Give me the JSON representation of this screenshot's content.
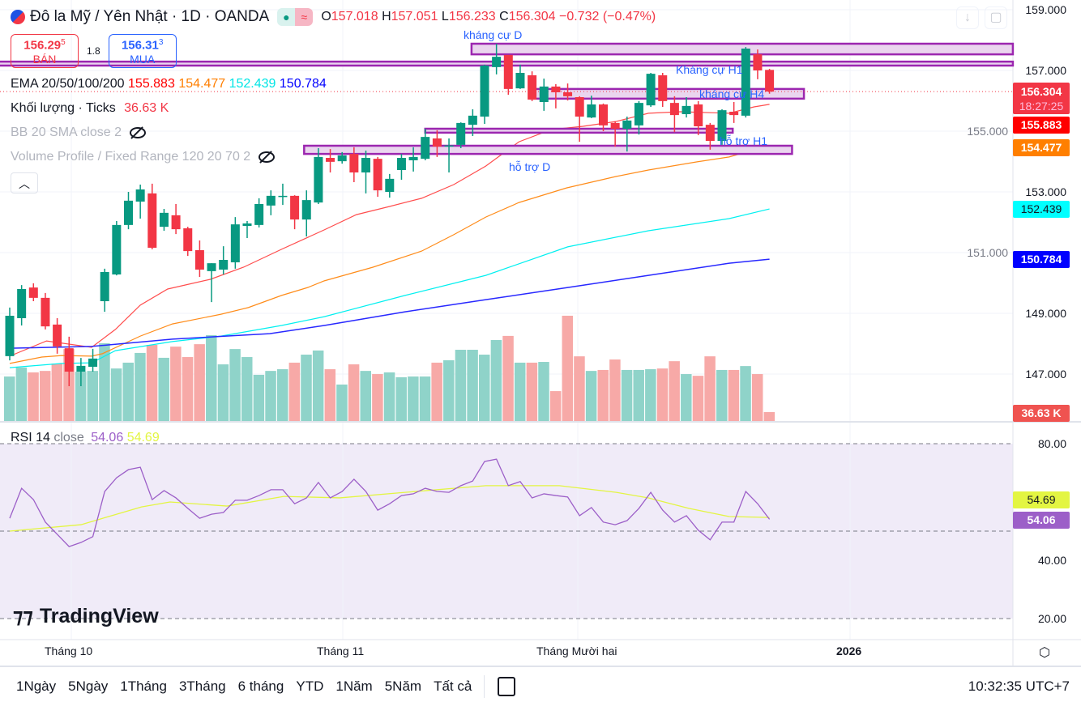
{
  "header": {
    "symbol_title": "Đô la Mỹ / Yên Nhật · 1D · OANDA",
    "market_icons": [
      "dot-icon",
      "approx-icon"
    ],
    "ohlc": {
      "o_label": "O",
      "o": "157.018",
      "h_label": "H",
      "h": "157.051",
      "l_label": "L",
      "l": "156.233",
      "c_label": "C",
      "c": "156.304",
      "change": "−0.732 (−0.47%)"
    },
    "sell": {
      "price": "156.29",
      "sup": "5",
      "label": "BÁN"
    },
    "spread": "1.8",
    "buy": {
      "price": "156.31",
      "sup": "3",
      "label": "MUA"
    }
  },
  "indicators": {
    "ema": {
      "label": "EMA 20/50/100/200",
      "values": [
        "155.883",
        "154.477",
        "152.439",
        "150.784"
      ]
    },
    "volume": {
      "label": "Khối lượng · Ticks",
      "value": "36.63 K"
    },
    "bb": {
      "label": "BB 20 SMA close 2"
    },
    "vp": {
      "label": "Volume Profile / Fixed Range 120 20 70 2"
    }
  },
  "colors": {
    "up": "#089981",
    "down": "#f23645",
    "ema20": "#ff4d4d",
    "ema50": "#ff8c1a",
    "ema100": "#00f0f0",
    "ema200": "#2828ff",
    "zone_fill": "#ead5ee",
    "zone_border": "#9c27b0",
    "rsi": "#9c5fc8",
    "rsi_ma": "#e3f542"
  },
  "price_axis": {
    "labels": [
      "159.000",
      "157.000",
      "155.000",
      "153.000",
      "151.000",
      "149.000",
      "147.000"
    ],
    "tags": [
      {
        "value": "156.304",
        "sub": "18:27:25",
        "color": "#f23645"
      },
      {
        "value": "155.883",
        "color": "#ff0000"
      },
      {
        "value": "154.477",
        "color": "#ff7f00"
      },
      {
        "value": "152.439",
        "color": "#00ffff"
      },
      {
        "value": "150.784",
        "color": "#0000ff"
      },
      {
        "value": "36.63 K",
        "color": "#ef5350"
      }
    ]
  },
  "rsi": {
    "label": "RSI 14",
    "source": "close",
    "value": "54.06",
    "ma_value": "54.69",
    "axis_labels": [
      "80.00",
      "40.00",
      "20.00"
    ]
  },
  "time_axis": {
    "labels": [
      "Tháng 10",
      "Tháng 11",
      "Tháng Mười hai",
      "2026"
    ]
  },
  "bottom_bar": {
    "ranges": [
      "1Ngày",
      "5Ngày",
      "1Tháng",
      "3Tháng",
      "6 tháng",
      "YTD",
      "1Năm",
      "5Năm",
      "Tất cả"
    ],
    "time": "10:32:35 UTC+7"
  },
  "watermark": "TradingView",
  "chart_data": {
    "type": "candlestick",
    "title": "Đô la Mỹ / Yên Nhật · 1D · OANDA",
    "ylim": [
      146.3,
      159.3
    ],
    "candles_ohlc": [
      [
        147.59,
        149.19,
        147.45,
        148.92
      ],
      [
        148.84,
        149.93,
        148.6,
        149.8
      ],
      [
        149.85,
        149.99,
        149.4,
        149.51
      ],
      [
        149.51,
        149.67,
        148.47,
        148.57
      ],
      [
        148.63,
        148.84,
        147.67,
        147.91
      ],
      [
        147.85,
        148.23,
        146.6,
        147.08
      ],
      [
        147.08,
        147.53,
        146.6,
        147.27
      ],
      [
        147.24,
        147.83,
        147.08,
        147.51
      ],
      [
        149.4,
        150.47,
        149.05,
        150.36
      ],
      [
        150.28,
        152.04,
        150.25,
        151.91
      ],
      [
        151.91,
        153.0,
        151.77,
        152.71
      ],
      [
        152.68,
        153.24,
        152.12,
        153.08
      ],
      [
        152.95,
        153.27,
        151.11,
        151.16
      ],
      [
        151.85,
        152.44,
        151.72,
        152.31
      ],
      [
        152.23,
        152.6,
        151.61,
        151.77
      ],
      [
        151.8,
        151.85,
        150.89,
        151.05
      ],
      [
        151.08,
        151.4,
        150.2,
        150.44
      ],
      [
        150.39,
        150.65,
        149.37,
        150.65
      ],
      [
        150.44,
        151.21,
        150.28,
        150.76
      ],
      [
        150.68,
        152.17,
        150.47,
        151.93
      ],
      [
        151.88,
        152.04,
        151.48,
        151.96
      ],
      [
        151.91,
        152.79,
        151.83,
        152.6
      ],
      [
        152.55,
        153.05,
        152.23,
        152.87
      ],
      [
        152.84,
        153.27,
        152.57,
        152.87
      ],
      [
        152.87,
        152.89,
        151.77,
        152.09
      ],
      [
        152.09,
        153.05,
        151.53,
        152.73
      ],
      [
        152.65,
        154.44,
        152.6,
        154.15
      ],
      [
        154.12,
        154.41,
        153.64,
        153.99
      ],
      [
        154.01,
        154.31,
        153.93,
        154.2
      ],
      [
        154.25,
        154.47,
        153.32,
        153.64
      ],
      [
        153.64,
        154.36,
        152.95,
        154.12
      ],
      [
        154.09,
        154.15,
        152.84,
        153.05
      ],
      [
        153.0,
        153.59,
        152.81,
        153.43
      ],
      [
        153.72,
        154.25,
        153.4,
        154.12
      ],
      [
        154.04,
        154.47,
        153.67,
        154.15
      ],
      [
        154.09,
        155.08,
        154.04,
        154.81
      ],
      [
        154.76,
        155.03,
        154.15,
        154.49
      ],
      [
        154.52,
        154.76,
        153.64,
        154.53
      ],
      [
        154.55,
        155.29,
        154.44,
        155.27
      ],
      [
        155.21,
        155.72,
        154.84,
        155.51
      ],
      [
        155.48,
        157.19,
        155.24,
        157.16
      ],
      [
        157.11,
        157.88,
        156.87,
        157.45
      ],
      [
        157.51,
        157.51,
        156.2,
        156.39
      ],
      [
        156.41,
        157.19,
        156.39,
        156.92
      ],
      [
        156.84,
        156.97,
        155.99,
        156.04
      ],
      [
        155.96,
        156.73,
        155.67,
        156.47
      ],
      [
        156.47,
        156.55,
        155.75,
        156.28
      ],
      [
        156.28,
        156.57,
        156.01,
        156.15
      ],
      [
        156.12,
        156.15,
        154.65,
        155.48
      ],
      [
        155.45,
        156.17,
        155.43,
        155.88
      ],
      [
        155.88,
        155.91,
        155.0,
        155.19
      ],
      [
        155.27,
        155.32,
        154.49,
        155.08
      ],
      [
        155.08,
        155.48,
        154.33,
        155.35
      ],
      [
        155.19,
        155.99,
        154.89,
        155.93
      ],
      [
        155.85,
        156.92,
        155.8,
        156.89
      ],
      [
        156.84,
        156.92,
        155.8,
        155.99
      ],
      [
        155.93,
        156.15,
        154.97,
        155.53
      ],
      [
        155.56,
        156.12,
        155.45,
        155.83
      ],
      [
        155.88,
        155.99,
        154.87,
        155.16
      ],
      [
        155.21,
        155.27,
        154.39,
        154.68
      ],
      [
        154.68,
        155.72,
        154.55,
        155.69
      ],
      [
        155.64,
        155.96,
        155.27,
        155.53
      ],
      [
        155.51,
        157.77,
        155.45,
        157.72
      ],
      [
        157.53,
        157.69,
        156.71,
        157.0
      ],
      [
        157.018,
        157.051,
        156.233,
        156.304
      ]
    ],
    "volume_k": [
      183,
      220,
      200,
      206,
      236,
      296,
      203,
      206,
      320,
      216,
      240,
      280,
      313,
      260,
      306,
      263,
      316,
      353,
      233,
      296,
      263,
      190,
      206,
      213,
      240,
      273,
      290,
      213,
      150,
      233,
      206,
      193,
      200,
      180,
      183,
      183,
      240,
      250,
      293,
      293,
      273,
      333,
      350,
      240,
      240,
      243,
      123,
      433,
      266,
      206,
      210,
      253,
      210,
      210,
      213,
      216,
      246,
      193,
      186,
      266,
      210,
      210,
      226,
      193,
      36.63
    ],
    "ema": [
      {
        "name": "EMA 20",
        "last": 155.883,
        "points": [
          [
            0,
            147.59
          ],
          [
            3.1,
            148.09
          ],
          [
            6.9,
            147.88
          ],
          [
            8.9,
            148.47
          ],
          [
            11,
            149.27
          ],
          [
            13.3,
            149.8
          ],
          [
            16.9,
            150.12
          ],
          [
            19.7,
            150.52
          ],
          [
            22.9,
            151.11
          ],
          [
            26.5,
            151.75
          ],
          [
            29.2,
            152.25
          ],
          [
            32,
            152.52
          ],
          [
            34.7,
            152.79
          ],
          [
            37.4,
            153.24
          ],
          [
            40.1,
            153.85
          ],
          [
            42.9,
            154.65
          ],
          [
            45.6,
            155.05
          ],
          [
            48.3,
            155.16
          ],
          [
            51.1,
            155.32
          ],
          [
            53.8,
            155.59
          ],
          [
            56.5,
            155.64
          ],
          [
            60.6,
            155.59
          ],
          [
            62.7,
            155.8
          ],
          [
            64,
            155.883
          ]
        ]
      },
      {
        "name": "EMA 50",
        "last": 154.477,
        "points": [
          [
            0,
            147.35
          ],
          [
            2.7,
            147.56
          ],
          [
            4.4,
            147.61
          ],
          [
            6.9,
            147.59
          ],
          [
            7.8,
            147.67
          ],
          [
            11,
            148.25
          ],
          [
            13.7,
            148.65
          ],
          [
            17.8,
            148.97
          ],
          [
            20.1,
            149.19
          ],
          [
            22.9,
            149.59
          ],
          [
            25.1,
            149.85
          ],
          [
            26.5,
            150.07
          ],
          [
            30.6,
            150.52
          ],
          [
            34.7,
            151.05
          ],
          [
            37.4,
            151.59
          ],
          [
            40.1,
            152.17
          ],
          [
            42.9,
            152.65
          ],
          [
            46.9,
            153.13
          ],
          [
            51.1,
            153.51
          ],
          [
            53.8,
            153.72
          ],
          [
            57.9,
            153.99
          ],
          [
            60.6,
            154.15
          ],
          [
            62.7,
            154.39
          ],
          [
            64,
            154.477
          ]
        ]
      },
      {
        "name": "EMA 100",
        "last": 152.439,
        "points": [
          [
            0,
            147.21
          ],
          [
            4.4,
            147.35
          ],
          [
            6.9,
            147.37
          ],
          [
            8.9,
            147.77
          ],
          [
            13.7,
            148.07
          ],
          [
            17.8,
            148.25
          ],
          [
            22.9,
            148.6
          ],
          [
            26.5,
            148.89
          ],
          [
            33.3,
            149.59
          ],
          [
            40.1,
            150.25
          ],
          [
            47,
            151.19
          ],
          [
            53.8,
            151.72
          ],
          [
            60.6,
            152.12
          ],
          [
            64,
            152.439
          ]
        ]
      },
      {
        "name": "EMA 200",
        "last": 150.784,
        "points": [
          [
            0,
            147.85
          ],
          [
            6.9,
            147.91
          ],
          [
            13.7,
            148.15
          ],
          [
            21.9,
            148.33
          ],
          [
            26.5,
            148.6
          ],
          [
            33.3,
            149.05
          ],
          [
            40.1,
            149.45
          ],
          [
            47,
            149.85
          ],
          [
            53.8,
            150.25
          ],
          [
            60.6,
            150.65
          ],
          [
            64,
            150.784
          ]
        ]
      }
    ],
    "zones": [
      {
        "label": "kháng cự D",
        "top": 157.88,
        "bottom": 157.53,
        "start_bar": 38.9,
        "end_bar": 84.5
      },
      {
        "label": "Kháng cự H1",
        "top": 157.29,
        "bottom": 157.16,
        "start_bar": -1,
        "end_bar": 84.5
      },
      {
        "label": "kháng cự H4",
        "top": 156.39,
        "bottom": 156.07,
        "start_bar": 43.9,
        "end_bar": 66.9
      },
      {
        "label": "",
        "top": 155.08,
        "bottom": 154.95,
        "start_bar": 35,
        "end_bar": 60.9
      },
      {
        "label": "hỗ trợ H1",
        "top": 154.52,
        "bottom": 154.25,
        "start_bar": 24.8,
        "end_bar": 65.9
      },
      {
        "label": "hỗ trợ D",
        "top": null,
        "bottom": null,
        "start_bar": null,
        "end_bar": null
      }
    ],
    "rsi_values": [
      54.4,
      64.7,
      60.8,
      53.1,
      48.9,
      44.7,
      46.1,
      48.1,
      63.6,
      68.3,
      71.1,
      71.9,
      60.8,
      63.9,
      61.4,
      57.8,
      54.4,
      55.8,
      56.4,
      60.6,
      60.6,
      62.2,
      64.2,
      64.2,
      59.4,
      61.4,
      66.7,
      61.4,
      63.6,
      67.8,
      63.6,
      57.2,
      59.4,
      62.2,
      62.8,
      64.7,
      63.6,
      63.3,
      65.6,
      67.2,
      73.9,
      74.7,
      65.6,
      67.0,
      61.4,
      62.8,
      62.2,
      61.7,
      55.3,
      58.1,
      53.1,
      52.2,
      53.6,
      57.8,
      63.3,
      57.2,
      53.1,
      55.3,
      50.3,
      47.0,
      53.1,
      53.1,
      63.6,
      59.4,
      54.06
    ],
    "rsi_ma_points": [
      [
        0,
        50.0
      ],
      [
        6,
        52.2
      ],
      [
        11.1,
        58.3
      ],
      [
        13.5,
        60.0
      ],
      [
        18.3,
        58.6
      ],
      [
        23.1,
        61.9
      ],
      [
        27.8,
        61.4
      ],
      [
        33.3,
        63.3
      ],
      [
        40.1,
        65.6
      ],
      [
        46.3,
        65.6
      ],
      [
        51.1,
        63.3
      ],
      [
        53.8,
        61.4
      ],
      [
        57.2,
        57.8
      ],
      [
        60.6,
        55.0
      ],
      [
        64,
        54.69
      ]
    ],
    "rsi_ylim": [
      20,
      80
    ],
    "rsi_bands": [
      80,
      50,
      20
    ]
  }
}
